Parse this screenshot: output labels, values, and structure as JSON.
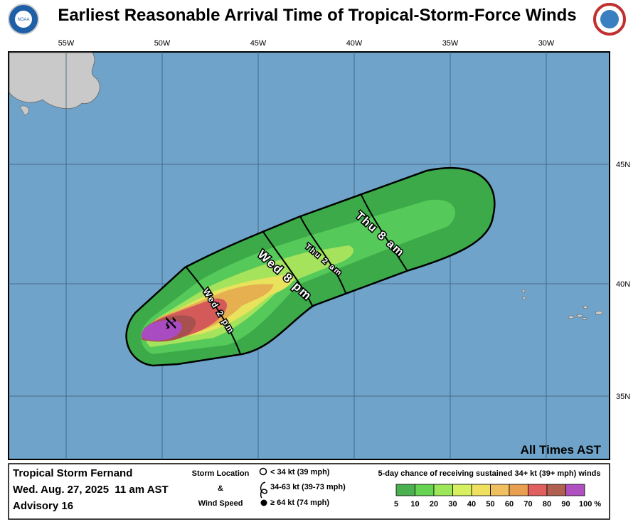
{
  "header": {
    "title": "Earliest Reasonable Arrival Time of Tropical-Storm-Force Winds"
  },
  "map": {
    "lon_labels": [
      "55W",
      "50W",
      "45W",
      "40W",
      "35W",
      "30W"
    ],
    "lat_labels": [
      "45N",
      "40N",
      "35N"
    ],
    "time_labels": [
      "Wed 2 pm",
      "Wed 8 pm",
      "Thu 2 am",
      "Thu 8 am"
    ],
    "note": "All Times AST"
  },
  "legend": {
    "storm_name": "Tropical Storm Fernand",
    "issued": "Wed. Aug. 27, 2025  11 am AST",
    "advisory": "Advisory 16",
    "symbols_title_1": "Storm Location",
    "symbols_title_2": "&",
    "symbols_title_3": "Wind Speed",
    "symbols": [
      "< 34 kt (39 mph)",
      "34-63 kt (39-73 mph)",
      "≥ 64 kt (74 mph)"
    ],
    "scale_title": "5-day chance of receiving sustained 34+ kt (39+ mph) winds",
    "scale_labels": [
      "5",
      "10",
      "20",
      "30",
      "40",
      "50",
      "60",
      "70",
      "80",
      "90",
      "100 %"
    ],
    "scale_colors": [
      "#4caf50",
      "#66d352",
      "#9de65a",
      "#d6f060",
      "#f0e060",
      "#f0c060",
      "#e8a050",
      "#e06060",
      "#b06050",
      "#b050c0"
    ]
  }
}
